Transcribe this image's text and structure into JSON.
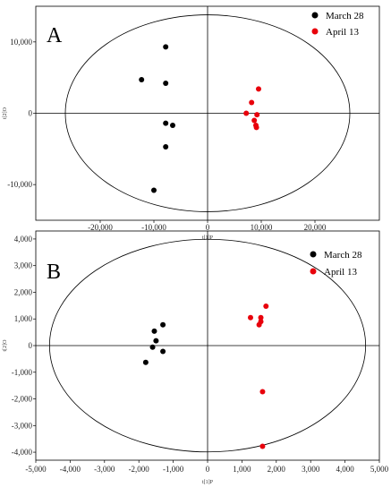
{
  "chart_data": [
    {
      "type": "scatter",
      "panel_label": "A",
      "xlabel": "t[1]P",
      "ylabel": "t[2]O",
      "xlim": [
        -32000,
        32000
      ],
      "ylim": [
        -15000,
        15000
      ],
      "xticks": [
        -20000,
        -10000,
        0,
        10000,
        20000
      ],
      "xtick_labels": [
        "-20,000",
        "-10,000",
        "0",
        "10,000",
        "20,000"
      ],
      "yticks": [
        -10000,
        0,
        10000
      ],
      "ytick_labels": [
        "-10,000",
        "0",
        "10,000"
      ],
      "ellipse": {
        "rx": 26500,
        "ry": 13800
      },
      "grid": false,
      "legend_position": "top-right",
      "series": [
        {
          "name": "March 28",
          "color": "#000000",
          "points": [
            [
              -7800,
              9300
            ],
            [
              -12300,
              4700
            ],
            [
              -7800,
              4200
            ],
            [
              -7800,
              -1400
            ],
            [
              -6500,
              -1700
            ],
            [
              -7800,
              -4700
            ],
            [
              -10000,
              -10800
            ]
          ]
        },
        {
          "name": "April 13",
          "color": "#e8000b",
          "points": [
            [
              9500,
              3400
            ],
            [
              8200,
              1500
            ],
            [
              7200,
              0
            ],
            [
              8700,
              -1000
            ],
            [
              9200,
              -200
            ],
            [
              9000,
              -1700
            ],
            [
              9100,
              -2000
            ]
          ]
        }
      ]
    },
    {
      "type": "scatter",
      "panel_label": "B",
      "xlabel": "t[1]P",
      "ylabel": "t[2]O",
      "xlim": [
        -5000,
        5000
      ],
      "ylim": [
        -4300,
        4300
      ],
      "xticks": [
        -5000,
        -4000,
        -3000,
        -2000,
        -1000,
        0,
        1000,
        2000,
        3000,
        4000,
        5000
      ],
      "xtick_labels": [
        "-5,000",
        "-4,000",
        "-3,000",
        "-2,000",
        "-1,000",
        "0",
        "1,000",
        "2,000",
        "3,000",
        "4,000",
        "5,000"
      ],
      "yticks": [
        -4000,
        -3000,
        -2000,
        -1000,
        0,
        1000,
        2000,
        3000,
        4000
      ],
      "ytick_labels": [
        "-4,000",
        "-3,000",
        "-2,000",
        "-1,000",
        "0",
        "1,000",
        "2,000",
        "3,000",
        "4,000"
      ],
      "ellipse": {
        "rx": 4600,
        "ry": 3990
      },
      "grid": false,
      "legend_position": "top-right",
      "series": [
        {
          "name": "March 28",
          "color": "#000000",
          "points": [
            [
              -1300,
              780
            ],
            [
              -1550,
              540
            ],
            [
              -1500,
              180
            ],
            [
              -1600,
              -60
            ],
            [
              -1300,
              -220
            ],
            [
              -1800,
              -630
            ]
          ]
        },
        {
          "name": "April 13",
          "color": "#e8000b",
          "points": [
            [
              1700,
              1480
            ],
            [
              1250,
              1050
            ],
            [
              1550,
              1050
            ],
            [
              1550,
              900
            ],
            [
              1500,
              780
            ],
            [
              1600,
              -1730
            ],
            [
              1600,
              -3780
            ]
          ]
        }
      ]
    }
  ]
}
